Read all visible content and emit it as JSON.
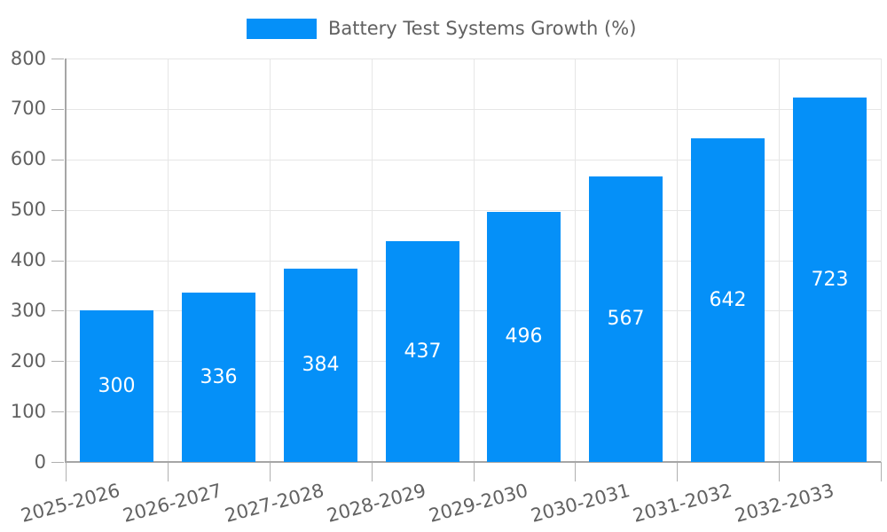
{
  "legend": {
    "label": "Battery Test Systems Growth (%)"
  },
  "chart_data": {
    "type": "bar",
    "title": "Battery Test Systems Growth (%)",
    "categories": [
      "2025-2026",
      "2026-2027",
      "2027-2028",
      "2028-2029",
      "2029-2030",
      "2030-2031",
      "2031-2032",
      "2032-2033"
    ],
    "values": [
      300,
      336,
      384,
      437,
      496,
      567,
      642,
      723
    ],
    "value_labels": [
      "300",
      "336",
      "384",
      "437",
      "496",
      "567",
      "642",
      "723"
    ],
    "xlabel": "",
    "ylabel": "",
    "ylim": [
      0,
      800
    ],
    "yticks": [
      0,
      100,
      200,
      300,
      400,
      500,
      600,
      700,
      800
    ],
    "grid": "on",
    "legend_position": "top-center",
    "value_label_position": "inside-center"
  },
  "colors": {
    "bar": "#0590f8",
    "grid": "#e6e6e6",
    "axis": "#a6a6a6",
    "tick": "#b0b0b0",
    "tick_text": "#616161",
    "bar_label_text": "#ffffff",
    "background": "#ffffff"
  }
}
